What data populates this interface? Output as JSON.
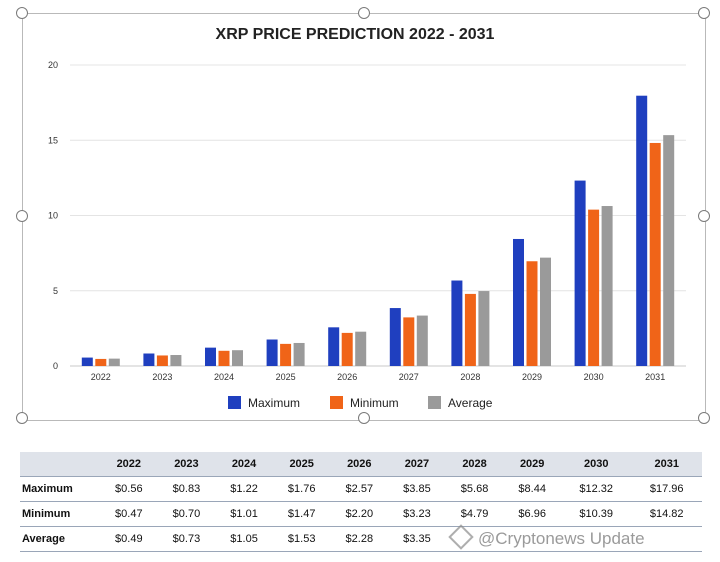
{
  "chart_data": {
    "type": "bar",
    "title": "XRP PRICE PREDICTION 2022 - 2031",
    "categories": [
      "2022",
      "2023",
      "2024",
      "2025",
      "2026",
      "2027",
      "2028",
      "2029",
      "2030",
      "2031"
    ],
    "series": [
      {
        "name": "Maximum",
        "color": "#1f3fbf",
        "values": [
          0.56,
          0.83,
          1.22,
          1.76,
          2.57,
          3.85,
          5.68,
          8.44,
          12.32,
          17.96
        ]
      },
      {
        "name": "Minimum",
        "color": "#f06418",
        "values": [
          0.47,
          0.7,
          1.01,
          1.47,
          2.2,
          3.23,
          4.79,
          6.96,
          10.39,
          14.82
        ]
      },
      {
        "name": "Average",
        "color": "#9a9a9a",
        "values": [
          0.49,
          0.73,
          1.05,
          1.53,
          2.28,
          3.35,
          4.98,
          7.2,
          10.63,
          15.34
        ]
      }
    ],
    "yticks": [
      0,
      5,
      10,
      15,
      20
    ],
    "ylim": [
      0,
      20
    ],
    "xlabel": "",
    "ylabel": "",
    "grid": true,
    "legend": "bottom"
  },
  "table": {
    "header": [
      "",
      "2022",
      "2023",
      "2024",
      "2025",
      "2026",
      "2027",
      "2028",
      "2029",
      "2030",
      "2031"
    ],
    "rows": [
      {
        "label": "Maximum",
        "cells": [
          "$0.56",
          "$0.83",
          "$1.22",
          "$1.76",
          "$2.57",
          "$3.85",
          "$5.68",
          "$8.44",
          "$12.32",
          "$17.96"
        ]
      },
      {
        "label": "Minimum",
        "cells": [
          "$0.47",
          "$0.70",
          "$1.01",
          "$1.47",
          "$2.20",
          "$3.23",
          "$4.79",
          "$6.96",
          "$10.39",
          "$14.82"
        ]
      },
      {
        "label": "Average",
        "cells": [
          "$0.49",
          "$0.73",
          "$1.05",
          "$1.53",
          "$2.28",
          "$3.35",
          "",
          "",
          "",
          ""
        ]
      }
    ]
  },
  "watermark": "@Cryptonews Update"
}
